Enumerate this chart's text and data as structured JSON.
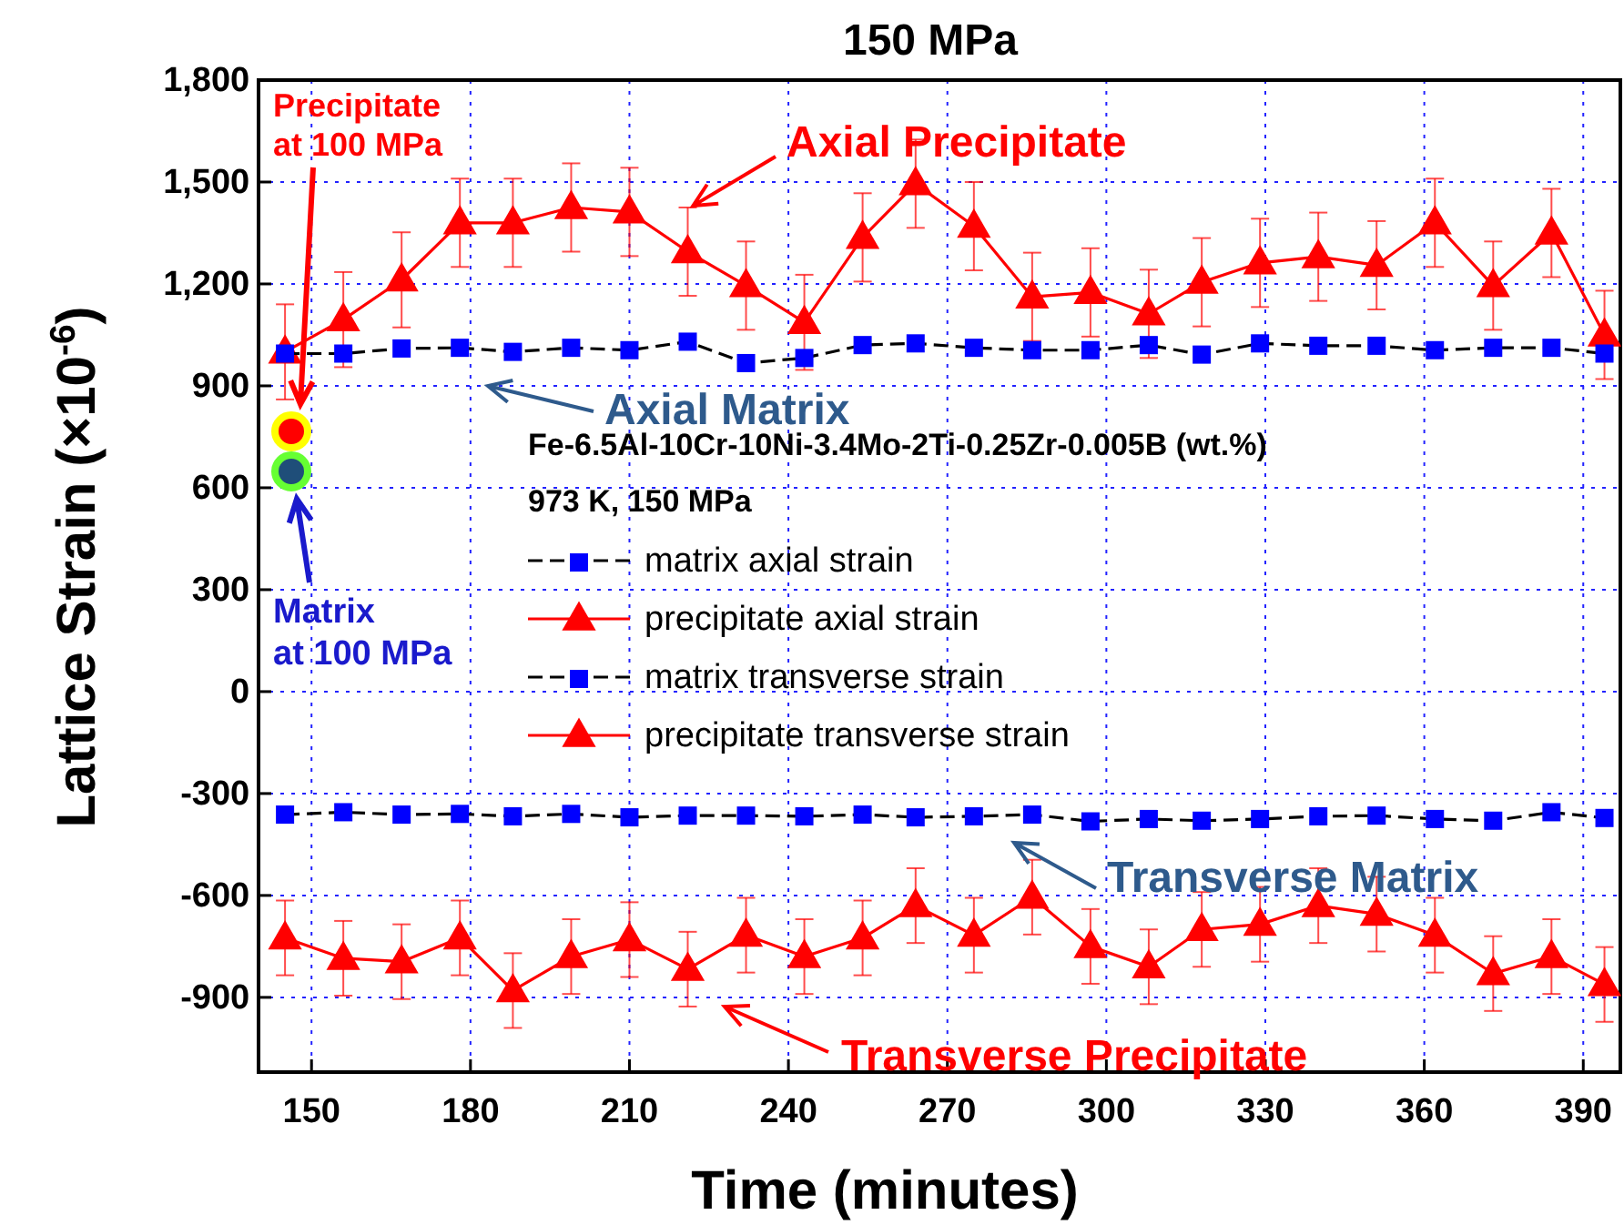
{
  "chart_data": {
    "type": "line",
    "title": "150 MPa",
    "xlabel": "Time (minutes)",
    "ylabel": "Lattice Strain (×10$^{-6}$)",
    "legend_title": "Fe-6.5Al-10Cr-10Ni-3.4Mo-2Ti-0.25Zr-0.005B (wt.%)\n973 K, 150 MPa",
    "x": [
      145,
      156,
      167,
      178,
      188,
      199,
      210,
      221,
      232,
      243,
      254,
      264,
      275,
      286,
      297,
      308,
      318,
      329,
      340,
      351,
      362,
      373,
      384,
      394
    ],
    "xlim": [
      140,
      397
    ],
    "xticks": [
      150,
      180,
      210,
      240,
      270,
      300,
      330,
      360,
      390
    ],
    "ylim": [
      -1120,
      1800
    ],
    "yticks": [
      {
        "value": -900,
        "label": "-900"
      },
      {
        "value": -600,
        "label": "-600"
      },
      {
        "value": -300,
        "label": "-300"
      },
      0,
      300,
      600,
      900,
      {
        "value": 1200,
        "label": "1,200"
      },
      {
        "value": 1500,
        "label": "1,500"
      },
      {
        "value": 1800,
        "label": "1,800"
      }
    ],
    "grid": true,
    "legend": "center",
    "line_style": "solid",
    "series": [
      {
        "name": "matrix axial strain",
        "color": "#0000ff",
        "marker": "square",
        "line_style": "dashed",
        "values": [
          995,
          995,
          1010,
          1012,
          1000,
          1012,
          1005,
          1030,
          967,
          982,
          1020,
          1025,
          1012,
          1005,
          1005,
          1020,
          992,
          1025,
          1018,
          1018,
          1005,
          1012,
          1012,
          995
        ]
      },
      {
        "name": "precipitate axial strain",
        "color": "#ff0000",
        "marker": "triangle",
        "values": [
          1000,
          1095,
          1212,
          1380,
          1380,
          1425,
          1412,
          1295,
          1195,
          1087,
          1337,
          1495,
          1370,
          1162,
          1175,
          1112,
          1205,
          1262,
          1280,
          1255,
          1380,
          1195,
          1350,
          1050
        ],
        "errors": [
          140,
          140,
          140,
          130,
          130,
          130,
          130,
          130,
          130,
          140,
          130,
          130,
          130,
          130,
          130,
          130,
          130,
          130,
          130,
          130,
          130,
          130,
          130,
          130
        ]
      },
      {
        "name": "matrix transverse strain",
        "color": "#0000ff",
        "marker": "square",
        "line_style": "dashed",
        "values": [
          -362,
          -355,
          -362,
          -360,
          -367,
          -360,
          -370,
          -365,
          -365,
          -367,
          -362,
          -370,
          -367,
          -362,
          -382,
          -375,
          -380,
          -375,
          -367,
          -365,
          -375,
          -380,
          -355,
          -372
        ]
      },
      {
        "name": "precipitate transverse strain",
        "color": "#ff0000",
        "marker": "triangle",
        "values": [
          -725,
          -785,
          -795,
          -725,
          -880,
          -780,
          -730,
          -817,
          -717,
          -780,
          -725,
          -630,
          -717,
          -605,
          -750,
          -810,
          -700,
          -685,
          -630,
          -655,
          -717,
          -830,
          -780,
          -862
        ],
        "errors": [
          110,
          110,
          110,
          110,
          110,
          110,
          110,
          110,
          110,
          110,
          110,
          110,
          110,
          110,
          110,
          110,
          110,
          110,
          110,
          110,
          110,
          110,
          110,
          110
        ]
      }
    ],
    "annotations": [
      {
        "text": "Axial Precipitate",
        "x": 222,
        "y": 1430
      },
      "Axial Matrix",
      "Transverse Matrix",
      "Transverse Precipitate",
      "Precipitate\nat 100 MPa",
      "Matrix\nat 100 MPa"
    ]
  }
}
